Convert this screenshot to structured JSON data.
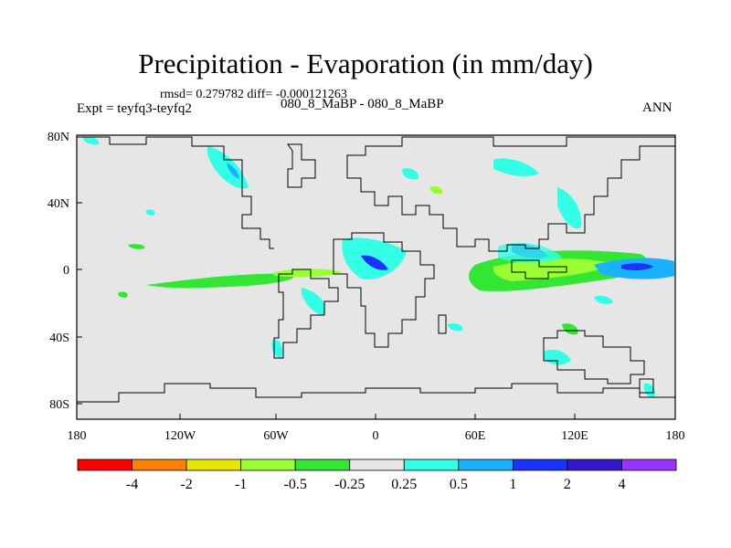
{
  "plot": {
    "title": "Precipitation - Evaporation (in mm/day)",
    "stats": "rmsd= 0.279782 diff= -0.000121263",
    "expt": "Expt = teyfq3-teyfq2",
    "case": "080_8_MaBP - 080_8_MaBP",
    "season": "ANN"
  },
  "axes": {
    "lat_labels": [
      "80N",
      "40N",
      "0",
      "40S",
      "80S"
    ],
    "lon_labels": [
      "180",
      "120W",
      "60W",
      "0",
      "60E",
      "120E",
      "180"
    ]
  },
  "colorbar": {
    "labels": [
      "-4",
      "-2",
      "-1",
      "-0.5",
      "-0.25",
      "0.25",
      "0.5",
      "1",
      "2",
      "4"
    ],
    "colors": [
      "#ff0000",
      "#ff7f00",
      "#e6e600",
      "#99ff33",
      "#33e633",
      "#e6e6e6",
      "#33ffe6",
      "#1ab2ff",
      "#1a33ff",
      "#3319cc",
      "#9933ff"
    ]
  },
  "map": {
    "background": "#e6e6e6",
    "coast_color": "#000000"
  }
}
